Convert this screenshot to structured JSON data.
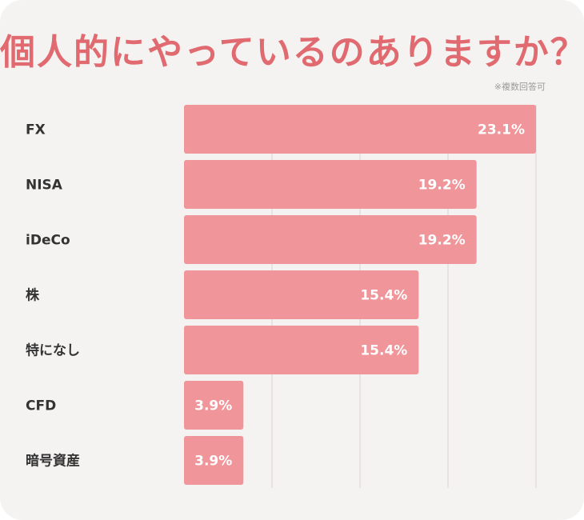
{
  "title": "個人的にやっているのありますか？",
  "note": "※複数回答可",
  "colors": {
    "background": "#f5f3f2",
    "title": "#e06a6f",
    "bar": "#f09599",
    "grid": "#d6d3d1"
  },
  "chart_data": {
    "type": "bar",
    "orientation": "horizontal",
    "title": "個人的にやっているのありますか？",
    "categories": [
      "FX",
      "NISA",
      "iDeCo",
      "株",
      "特になし",
      "CFD",
      "暗号資産"
    ],
    "values": [
      23.1,
      19.2,
      19.2,
      15.4,
      15.4,
      3.9,
      3.9
    ],
    "value_labels": [
      "23.1%",
      "19.2%",
      "19.2%",
      "15.4%",
      "15.4%",
      "3.9%",
      "3.9%"
    ],
    "xlim": [
      0,
      23.1
    ],
    "grid": true
  }
}
